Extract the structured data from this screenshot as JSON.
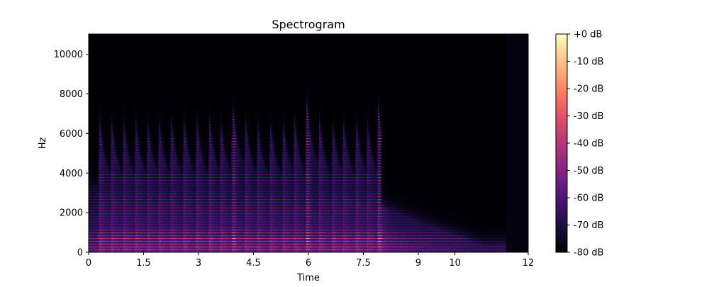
{
  "chart_data": {
    "type": "heatmap",
    "title": "Spectrogram",
    "xlabel": "Time",
    "ylabel": "Hz",
    "xlim": [
      0,
      12
    ],
    "ylim": [
      0,
      11025
    ],
    "x_ticks": [
      0,
      1.5,
      3,
      4.5,
      6,
      7.5,
      9,
      10,
      12
    ],
    "x_tick_labels": [
      "0",
      "1.5",
      "3",
      "4.5",
      "6",
      "7.5",
      "9",
      "10",
      "12"
    ],
    "y_ticks": [
      0,
      2000,
      4000,
      6000,
      8000,
      10000
    ],
    "y_tick_labels": [
      "0",
      "2000",
      "4000",
      "6000",
      "8000",
      "10000"
    ],
    "colorbar": {
      "range": [
        -80,
        0
      ],
      "colormap": "magma",
      "ticks": [
        0,
        -10,
        -20,
        -30,
        -40,
        -50,
        -60,
        -70,
        -80
      ],
      "tick_labels": [
        "+0 dB",
        "-10 dB",
        "-20 dB",
        "-30 dB",
        "-40 dB",
        "-50 dB",
        "-60 dB",
        "-70 dB",
        "-80 dB"
      ]
    },
    "onsets": [
      0.3,
      0.62,
      0.95,
      1.28,
      1.6,
      1.92,
      2.25,
      2.6,
      2.95,
      3.3,
      3.6,
      3.92,
      4.28,
      4.6,
      4.95,
      5.3,
      5.62,
      5.95,
      6.3,
      6.65,
      6.95,
      7.3,
      7.6,
      7.9
    ],
    "strong_onsets": [
      3.92,
      5.95,
      7.9
    ],
    "sound_end_time": 10.8,
    "fundamental_hz": 140,
    "harmonic_decay_hz": 1500,
    "max_energy_hz": 6500
  }
}
